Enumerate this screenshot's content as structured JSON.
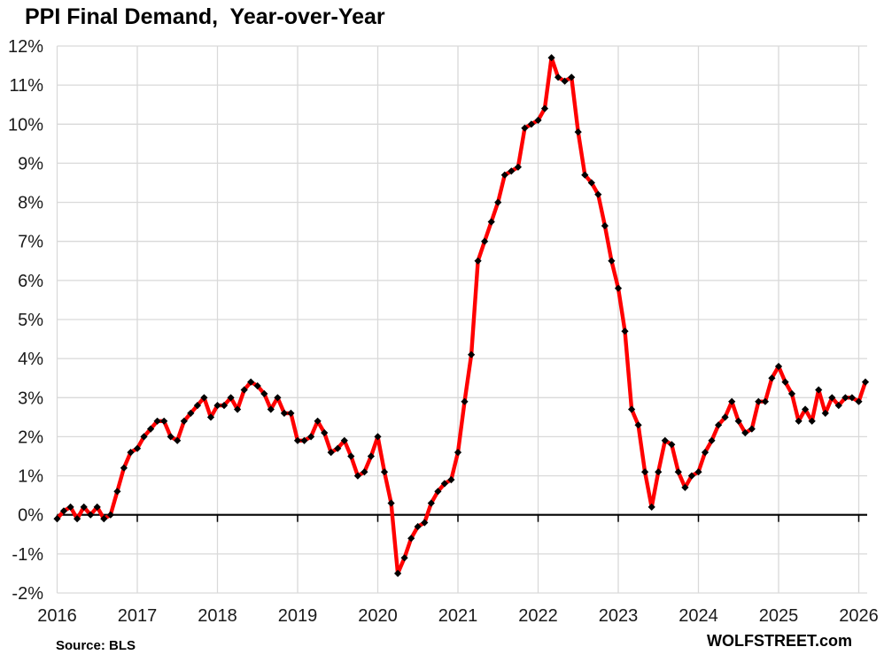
{
  "chart_data": {
    "type": "line",
    "title": "PPI Final Demand,  Year-over-Year",
    "x_tick_labels": [
      "2016",
      "2017",
      "2018",
      "2019",
      "2020",
      "2021",
      "2022",
      "2023",
      "2024",
      "2025",
      "2026"
    ],
    "y_tick_labels": [
      "12%",
      "11%",
      "10%",
      "9%",
      "8%",
      "7%",
      "6%",
      "5%",
      "4%",
      "3%",
      "2%",
      "1%",
      "0%",
      "-1%",
      "-2%"
    ],
    "ylim": [
      -2,
      12
    ],
    "y_step": 1,
    "grid": "on",
    "legend": "none",
    "frequency": "monthly",
    "start_month": "2016-01",
    "series": [
      {
        "name": "PPI Final Demand year-over-year percent change",
        "values_pct": [
          -0.1,
          0.1,
          0.2,
          -0.1,
          0.2,
          0.0,
          0.2,
          -0.1,
          0.0,
          0.6,
          1.2,
          1.6,
          1.7,
          2.0,
          2.2,
          2.4,
          2.4,
          2.0,
          1.9,
          2.4,
          2.6,
          2.8,
          3.0,
          2.5,
          2.8,
          2.8,
          3.0,
          2.7,
          3.2,
          3.4,
          3.3,
          3.1,
          2.7,
          3.0,
          2.6,
          2.6,
          1.9,
          1.9,
          2.0,
          2.4,
          2.1,
          1.6,
          1.7,
          1.9,
          1.5,
          1.0,
          1.1,
          1.5,
          2.0,
          1.1,
          0.3,
          -1.5,
          -1.1,
          -0.6,
          -0.3,
          -0.2,
          0.3,
          0.6,
          0.8,
          0.9,
          1.6,
          2.9,
          4.1,
          6.5,
          7.0,
          7.5,
          8.0,
          8.7,
          8.8,
          8.9,
          9.9,
          10.0,
          10.1,
          10.4,
          11.7,
          11.2,
          11.1,
          11.2,
          9.8,
          8.7,
          8.5,
          8.2,
          7.4,
          6.5,
          5.8,
          4.7,
          2.7,
          2.3,
          1.1,
          0.2,
          1.1,
          1.9,
          1.8,
          1.1,
          0.7,
          1.0,
          1.1,
          1.6,
          1.9,
          2.3,
          2.5,
          2.9,
          2.4,
          2.1,
          2.2,
          2.9,
          2.9,
          3.5,
          3.8,
          3.4,
          3.1,
          2.4,
          2.7,
          2.4,
          3.2,
          2.6,
          3.0,
          2.8,
          3.0,
          3.0,
          2.9,
          3.4
        ]
      }
    ],
    "colors": {
      "line": "#ff0000",
      "marker": "#000000",
      "gridline": "#d9d9d9",
      "zero_axis": "#000000",
      "tick_label": "#1a1a1a"
    }
  },
  "footer": {
    "source": "Source: BLS",
    "watermark": "WOLFSTREET.com"
  }
}
